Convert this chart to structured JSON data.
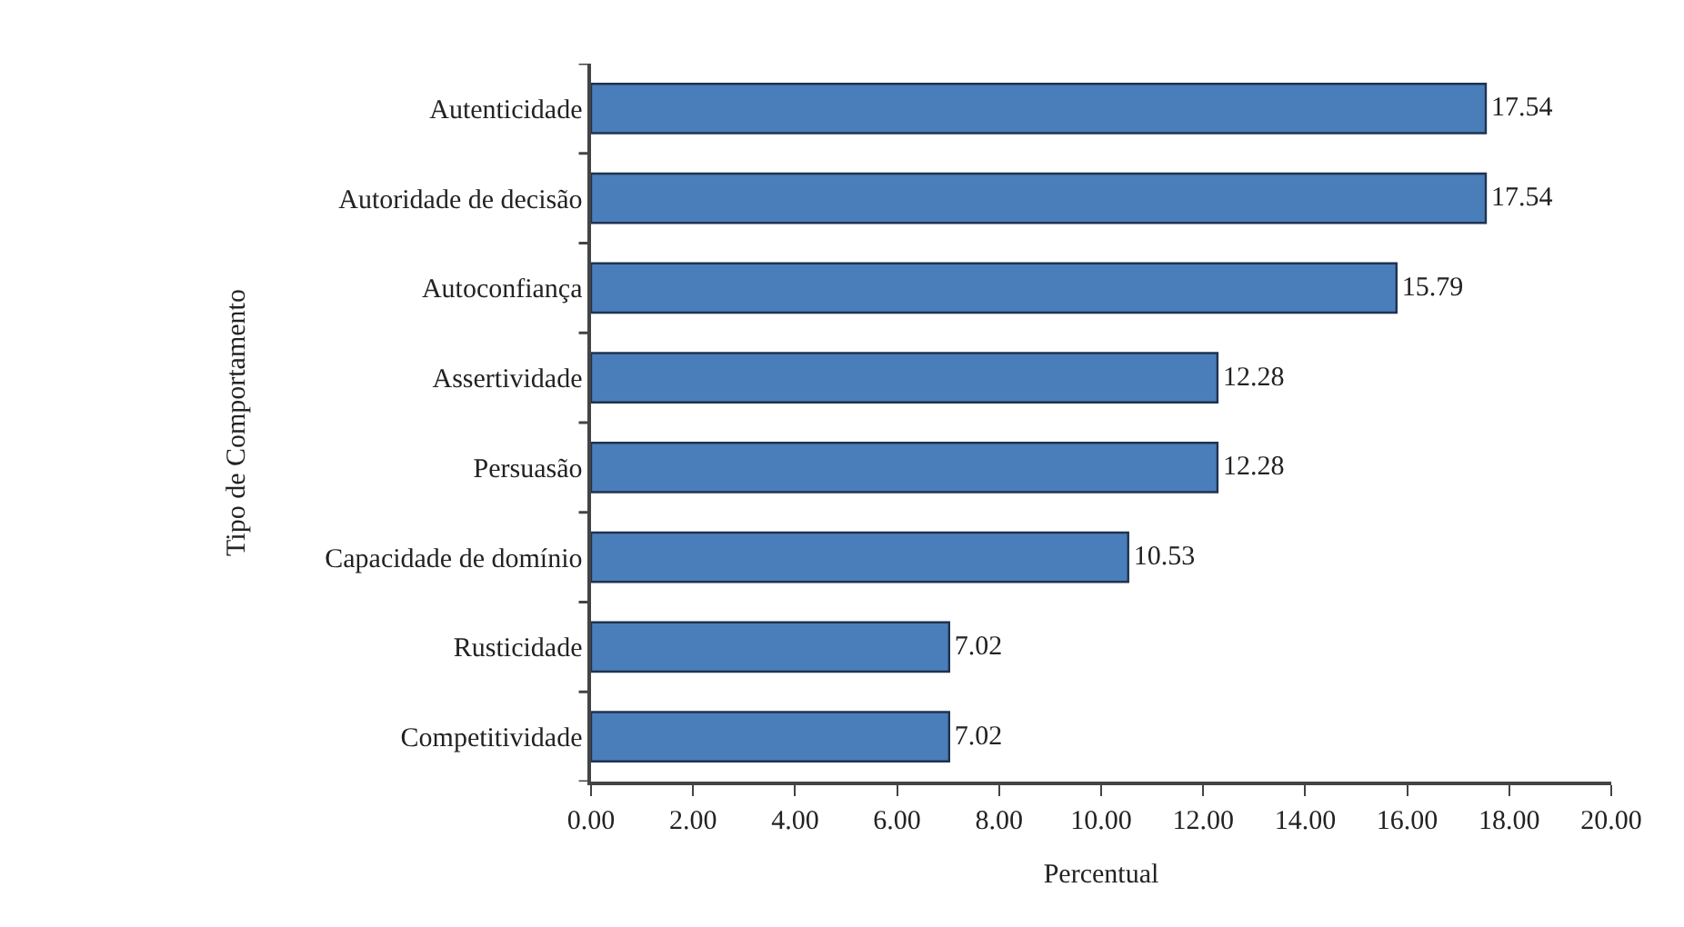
{
  "chart_data": {
    "type": "bar",
    "orientation": "horizontal",
    "xlabel": "Percentual",
    "ylabel": "Tipo de Comportamento",
    "categories": [
      "Autenticidade",
      "Autoridade de decisão",
      "Autoconfiança",
      "Assertividade",
      "Persuasão",
      "Capacidade de domínio",
      "Rusticidade",
      "Competitividade"
    ],
    "values": [
      17.54,
      17.54,
      15.79,
      12.28,
      12.28,
      10.53,
      7.02,
      7.02
    ],
    "color": "#4a7ebb",
    "xlim": [
      0,
      20
    ],
    "xticks": [
      {
        "value": 0,
        "label": "0.00"
      },
      {
        "value": 2,
        "label": "2.00"
      },
      {
        "value": 4,
        "label": "4.00"
      },
      {
        "value": 6,
        "label": "6.00"
      },
      {
        "value": 8,
        "label": "8.00"
      },
      {
        "value": 10,
        "label": "10.00"
      },
      {
        "value": 12,
        "label": "12.00"
      },
      {
        "value": 14,
        "label": "14.00"
      },
      {
        "value": 16,
        "label": "16.00"
      },
      {
        "value": 18,
        "label": "18.00"
      },
      {
        "value": 20,
        "label": "20.00"
      }
    ],
    "data_labels": true,
    "grid": false
  }
}
